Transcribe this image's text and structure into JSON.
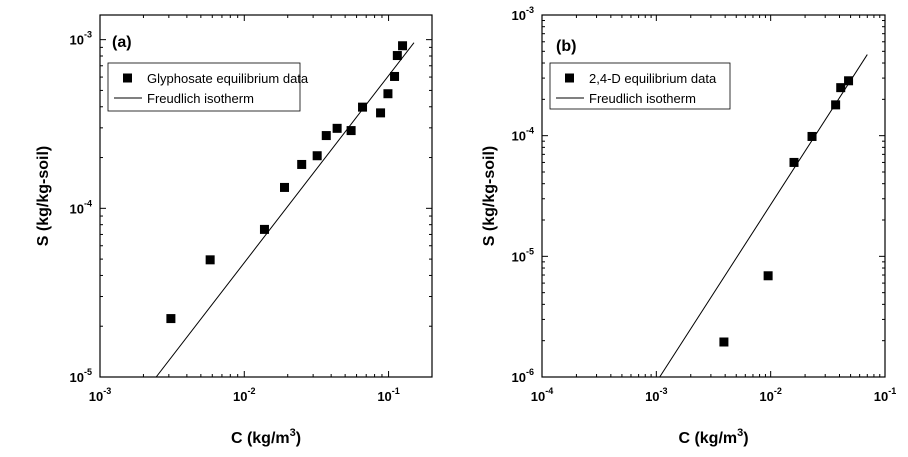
{
  "chart_data": [
    {
      "type": "scatter",
      "panel_label": "(a)",
      "xlabel": "C (kg/m",
      "xlabel_sup": "3",
      "xlabel_close": ")",
      "ylabel": "S (kg/kg-soil)",
      "xscale": "log",
      "yscale": "log",
      "xlim": [
        0.001,
        0.2
      ],
      "ylim": [
        1e-05,
        0.0014
      ],
      "xticks": [
        {
          "value": 0.001,
          "base": "10",
          "exp": "-3"
        },
        {
          "value": 0.01,
          "base": "10",
          "exp": "-2"
        },
        {
          "value": 0.1,
          "base": "10",
          "exp": "-1"
        }
      ],
      "yticks": [
        {
          "value": 1e-05,
          "base": "10",
          "exp": "-5"
        },
        {
          "value": 0.0001,
          "base": "10",
          "exp": "-4"
        },
        {
          "value": 0.001,
          "base": "10",
          "exp": "-3"
        }
      ],
      "legend_position": "top-left",
      "series": [
        {
          "name": "Glyphosate equilibrium data",
          "kind": "markers",
          "marker": "square",
          "points": [
            [
              0.0031,
              2.22e-05
            ],
            [
              0.0058,
              4.95e-05
            ],
            [
              0.0138,
              7.5e-05
            ],
            [
              0.019,
              0.000133
            ],
            [
              0.025,
              0.000182
            ],
            [
              0.032,
              0.000205
            ],
            [
              0.037,
              0.00027
            ],
            [
              0.044,
              0.000298
            ],
            [
              0.055,
              0.000289
            ],
            [
              0.066,
              0.000398
            ],
            [
              0.088,
              0.000368
            ],
            [
              0.099,
              0.000478
            ],
            [
              0.11,
              0.000605
            ],
            [
              0.115,
              0.000805
            ],
            [
              0.125,
              0.00092
            ]
          ]
        },
        {
          "name": "Freudlich isotherm",
          "kind": "line",
          "points": [
            [
              0.00245,
              1e-05
            ],
            [
              0.15,
              0.00096
            ]
          ]
        }
      ]
    },
    {
      "type": "scatter",
      "panel_label": "(b)",
      "xlabel": "C (kg/m",
      "xlabel_sup": "3",
      "xlabel_close": ")",
      "ylabel": "S (kg/kg-soil)",
      "xscale": "log",
      "yscale": "log",
      "xlim": [
        0.0001,
        0.1
      ],
      "ylim": [
        1e-06,
        0.001
      ],
      "xticks": [
        {
          "value": 0.0001,
          "base": "10",
          "exp": "-4"
        },
        {
          "value": 0.001,
          "base": "10",
          "exp": "-3"
        },
        {
          "value": 0.01,
          "base": "10",
          "exp": "-2"
        },
        {
          "value": 0.1,
          "base": "10",
          "exp": "-1"
        }
      ],
      "yticks": [
        {
          "value": 1e-06,
          "base": "10",
          "exp": "-6"
        },
        {
          "value": 1e-05,
          "base": "10",
          "exp": "-5"
        },
        {
          "value": 0.0001,
          "base": "10",
          "exp": "-4"
        },
        {
          "value": 0.001,
          "base": "10",
          "exp": "-3"
        }
      ],
      "legend_position": "top-left",
      "series": [
        {
          "name": "2,4-D equilibrium data",
          "kind": "markers",
          "marker": "square",
          "points": [
            [
              0.0039,
              1.95e-06
            ],
            [
              0.0095,
              6.9e-06
            ],
            [
              0.016,
              6e-05
            ],
            [
              0.023,
              9.85e-05
            ],
            [
              0.037,
              0.00018
            ],
            [
              0.041,
              0.00025
            ],
            [
              0.048,
              0.000285
            ]
          ]
        },
        {
          "name": "Freudlich isotherm",
          "kind": "line",
          "points": [
            [
              0.00107,
              1e-06
            ],
            [
              0.07,
              0.00047
            ]
          ]
        }
      ]
    }
  ]
}
